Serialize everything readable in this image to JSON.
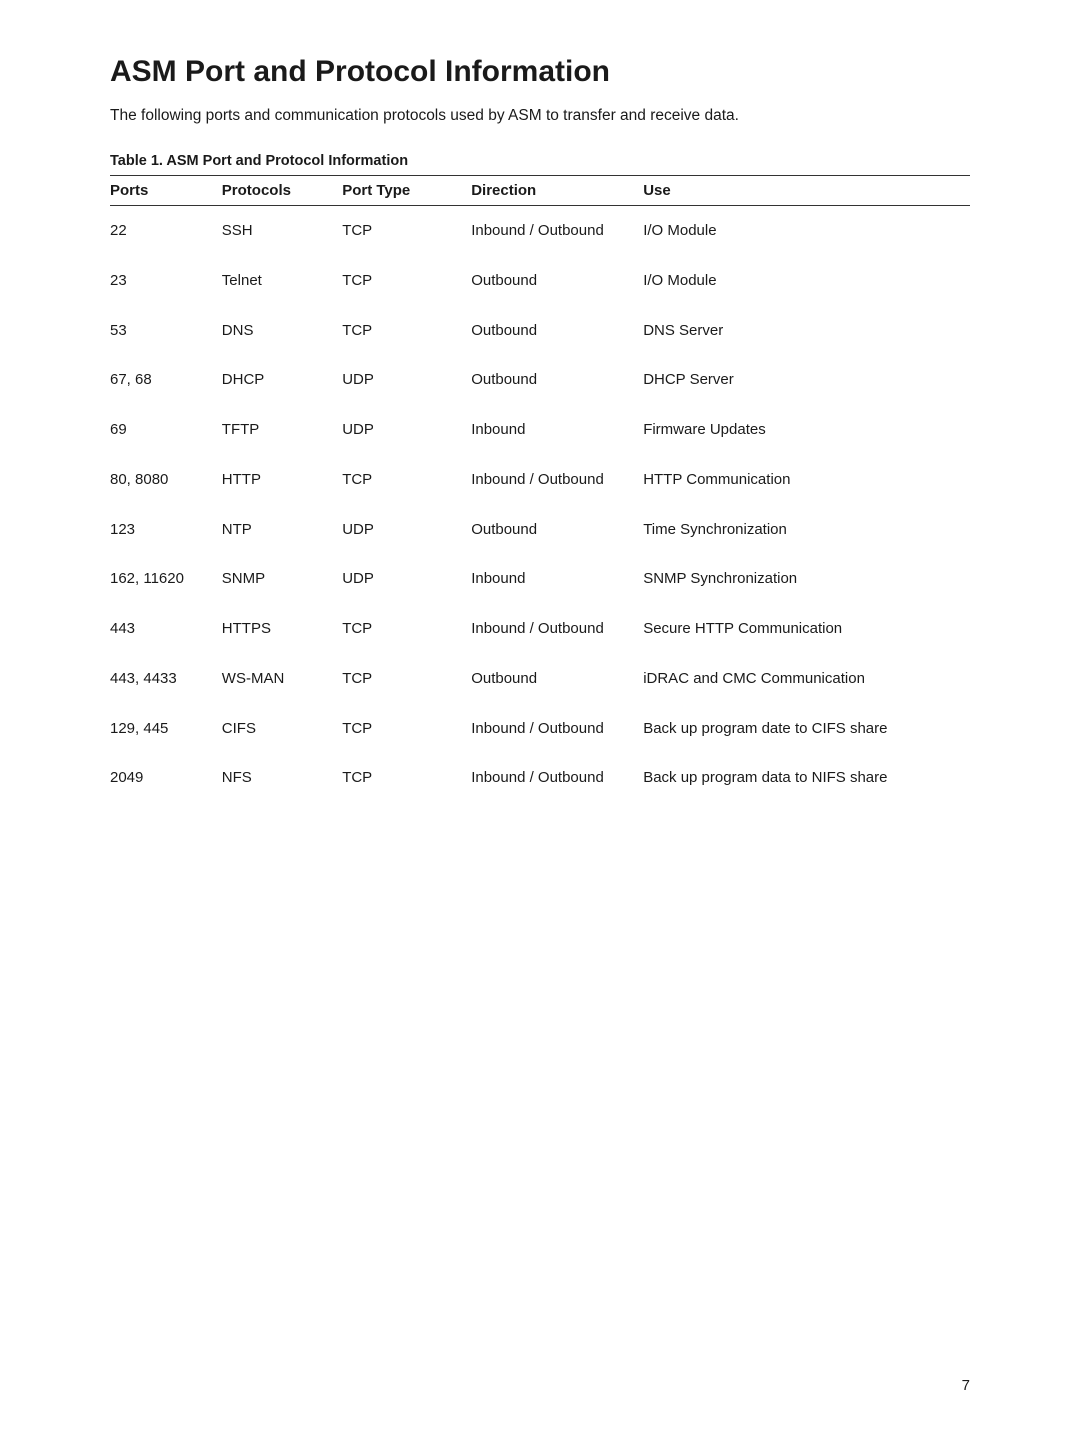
{
  "title": "ASM Port and Protocol Information",
  "intro": "The following ports and communication protocols used by ASM to transfer and receive data.",
  "table_caption": "Table 1. ASM Port and Protocol Information",
  "columns": {
    "ports": "Ports",
    "protocols": "Protocols",
    "port_type": "Port Type",
    "direction": "Direction",
    "use": "Use"
  },
  "rows": [
    {
      "ports": "22",
      "protocols": "SSH",
      "port_type": "TCP",
      "direction": "Inbound / Outbound",
      "use": "I/O Module"
    },
    {
      "ports": "23",
      "protocols": "Telnet",
      "port_type": "TCP",
      "direction": "Outbound",
      "use": "I/O Module"
    },
    {
      "ports": "53",
      "protocols": "DNS",
      "port_type": "TCP",
      "direction": "Outbound",
      "use": "DNS Server"
    },
    {
      "ports": "67, 68",
      "protocols": "DHCP",
      "port_type": "UDP",
      "direction": "Outbound",
      "use": "DHCP Server"
    },
    {
      "ports": "69",
      "protocols": "TFTP",
      "port_type": "UDP",
      "direction": "Inbound",
      "use": "Firmware Updates"
    },
    {
      "ports": "80, 8080",
      "protocols": "HTTP",
      "port_type": "TCP",
      "direction": "Inbound / Outbound",
      "use": "HTTP Communication"
    },
    {
      "ports": "123",
      "protocols": "NTP",
      "port_type": "UDP",
      "direction": "Outbound",
      "use": "Time Synchronization"
    },
    {
      "ports": "162, 11620",
      "protocols": "SNMP",
      "port_type": "UDP",
      "direction": "Inbound",
      "use": "SNMP Synchronization"
    },
    {
      "ports": "443",
      "protocols": "HTTPS",
      "port_type": "TCP",
      "direction": "Inbound / Outbound",
      "use": "Secure HTTP Communication"
    },
    {
      "ports": "443, 4433",
      "protocols": "WS-MAN",
      "port_type": "TCP",
      "direction": "Outbound",
      "use": "iDRAC and CMC Communication"
    },
    {
      "ports": "129, 445",
      "protocols": "CIFS",
      "port_type": "TCP",
      "direction": "Inbound / Outbound",
      "use": "Back up program date to CIFS share"
    },
    {
      "ports": "2049",
      "protocols": "NFS",
      "port_type": "TCP",
      "direction": "Inbound / Outbound",
      "use": "Back up program data to NIFS share"
    }
  ],
  "page_number": "7"
}
